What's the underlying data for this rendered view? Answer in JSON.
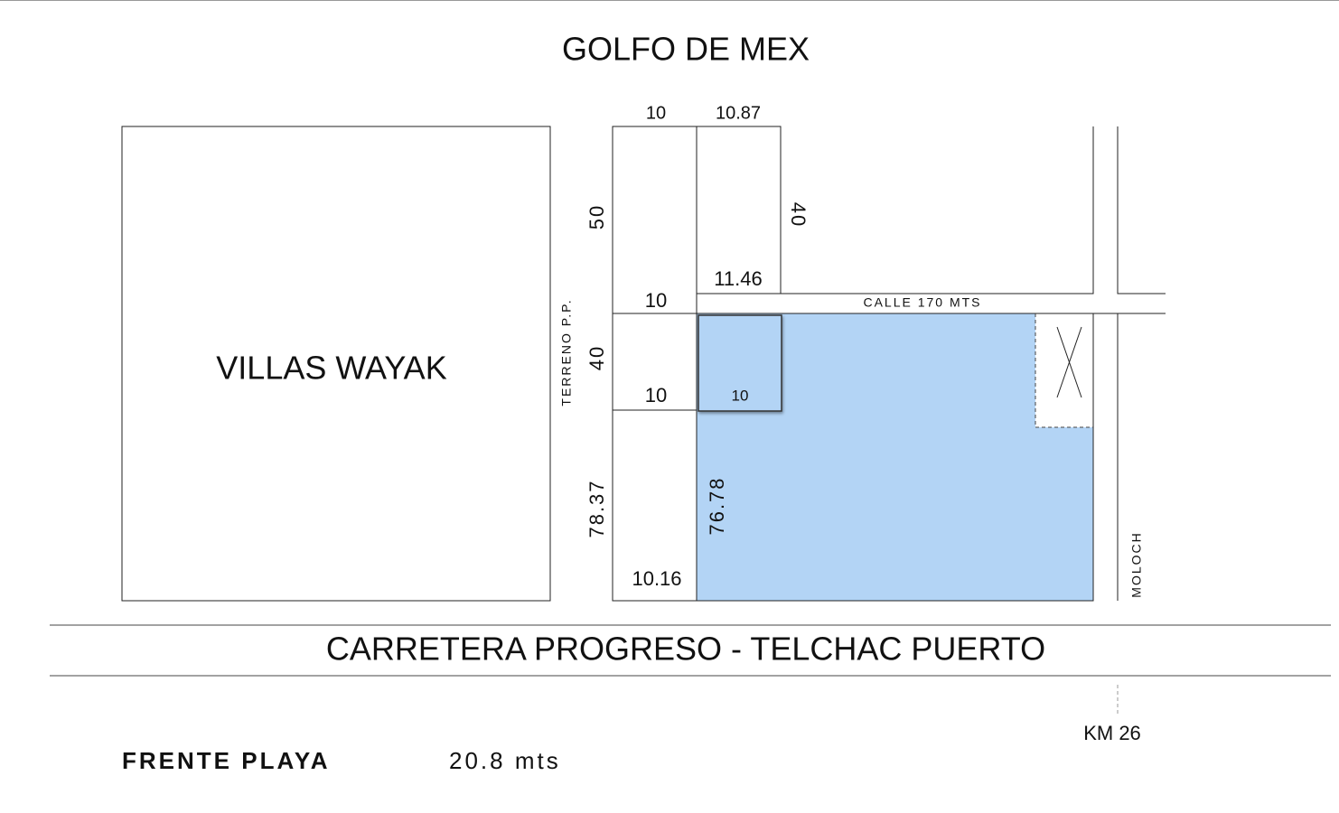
{
  "title": "GOLFO DE MEX",
  "neighbor": "VILLAS WAYAK",
  "side_label": "TERRENO P.P.",
  "street": "CALLE 170 MTS",
  "cross_street": "MOLOCH",
  "road": "CARRETERA PROGRESO - TELCHAC PUERTO",
  "km": "KM 26",
  "dimensions": {
    "top_left_width": "10",
    "top_right_width": "10.87",
    "left_upper_depth": "50",
    "right_upper_depth": "40",
    "right_lower_width": "11.46",
    "mid_top_width": "10",
    "mid_depth": "40",
    "mid_bottom_width": "10",
    "square_width": "10",
    "left_lower_depth": "78.37",
    "right_lower_depth": "76.78",
    "bottom_width": "10.16"
  },
  "footer": {
    "label": "FRENTE PLAYA",
    "value": "20.8 mts"
  }
}
